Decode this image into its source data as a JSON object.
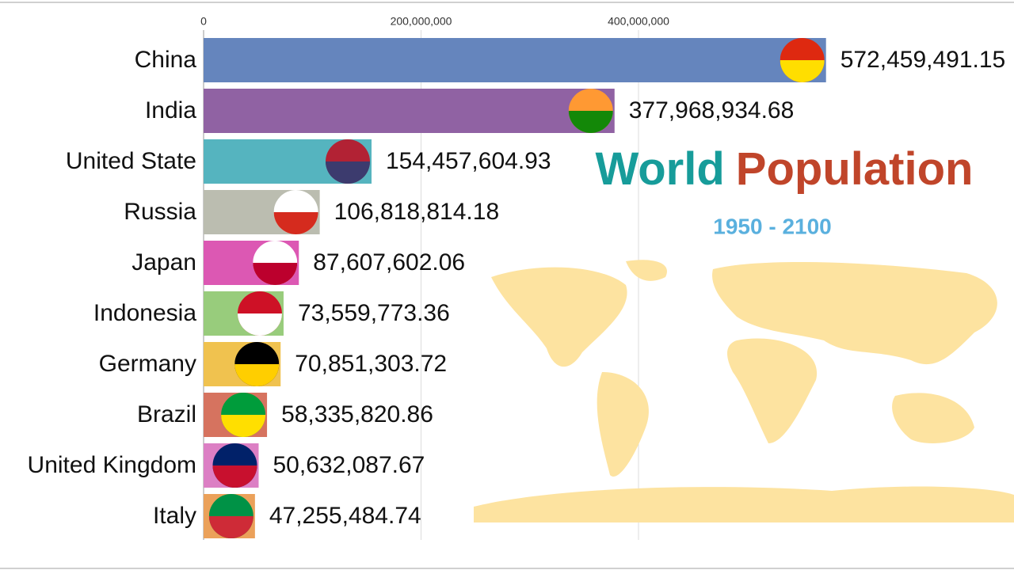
{
  "chart_data": {
    "type": "hbar",
    "title": [
      "World",
      "Population"
    ],
    "subtitle": "1950 - 2100",
    "categories": [
      "China",
      "India",
      "United State",
      "Russia",
      "Japan",
      "Indonesia",
      "Germany",
      "Brazil",
      "United Kingdom",
      "Italy"
    ],
    "values": [
      572459491.15,
      377968934.68,
      154457604.93,
      106818814.18,
      87607602.06,
      73559773.36,
      70851303.72,
      58335820.86,
      50632087.67,
      47255484.74
    ],
    "value_labels": [
      "572,459,491.15",
      "377,968,934.68",
      "154,457,604.93",
      "106,818,814.18",
      "87,607,602.06",
      "73,559,773.36",
      "70,851,303.72",
      "58,335,820.86",
      "50,632,087.67",
      "47,255,484.74"
    ],
    "colors": [
      "#6585bd",
      "#9062a3",
      "#55b4bf",
      "#bbbdb0",
      "#dc58b3",
      "#98cc7c",
      "#f0c24f",
      "#d6735f",
      "#dc7fc4",
      "#eba15a"
    ],
    "xlim": [
      0,
      600000000
    ],
    "xticks": [
      0,
      {
        "value": 200000000,
        "label": "200,000,000"
      },
      {
        "value": 400000000,
        "label": "400,000,000"
      }
    ],
    "grid": true
  }
}
